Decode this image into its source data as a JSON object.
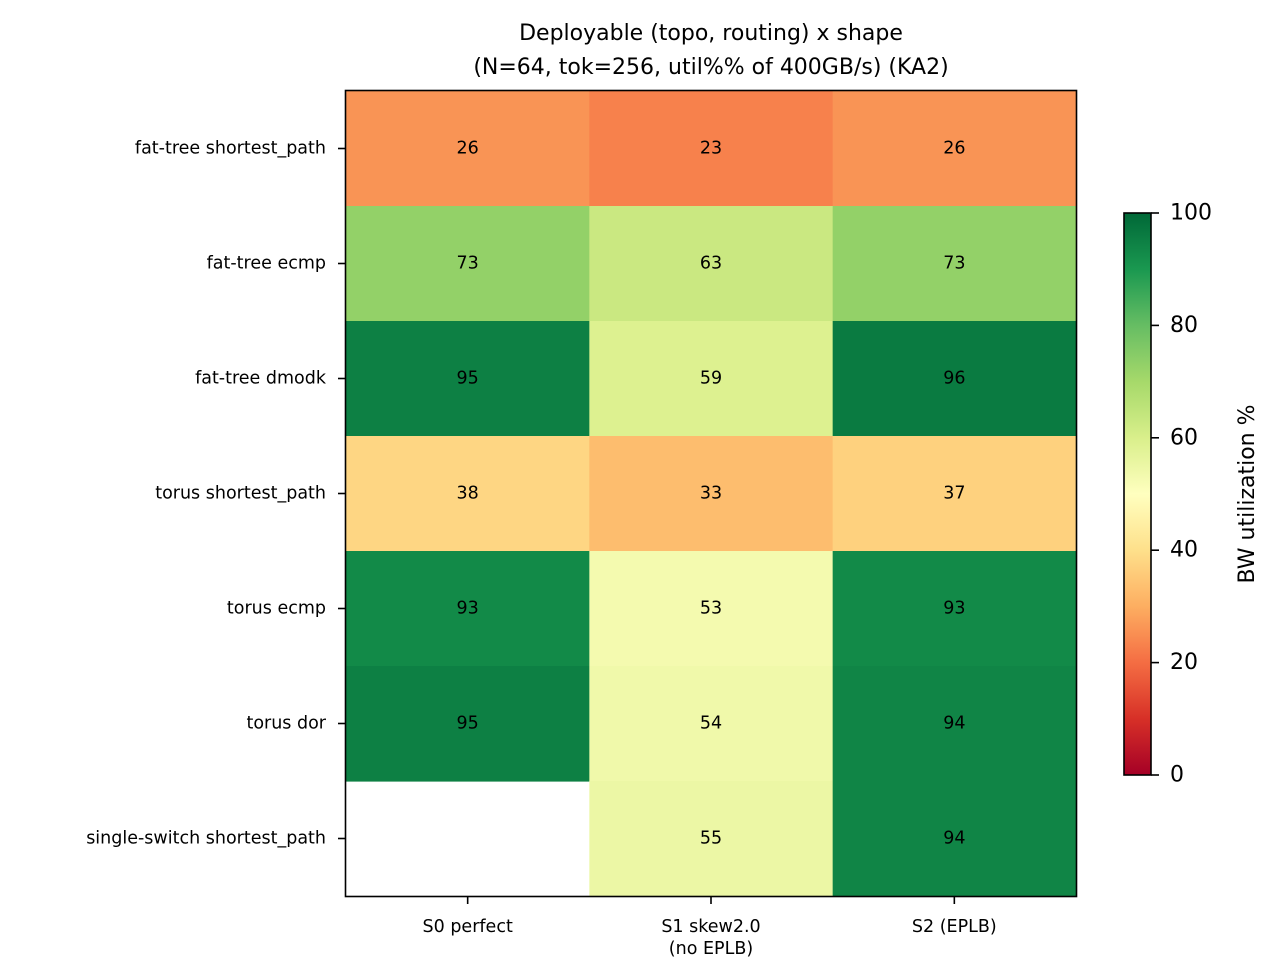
{
  "chart_data": {
    "type": "heatmap",
    "title_lines": [
      "Deployable (topo, routing) x shape",
      "(N=64, tok=256, util%% of 400GB/s) (KA2)"
    ],
    "rows": [
      "fat-tree shortest_path",
      "fat-tree ecmp",
      "fat-tree dmodk",
      "torus shortest_path",
      "torus ecmp",
      "torus dor",
      "single-switch shortest_path"
    ],
    "columns": [
      [
        "S0 perfect"
      ],
      [
        "S1 skew2.0",
        "(no EPLB)"
      ],
      [
        "S2 (EPLB)"
      ]
    ],
    "values": [
      [
        26,
        23,
        26
      ],
      [
        73,
        63,
        73
      ],
      [
        95,
        59,
        96
      ],
      [
        38,
        33,
        37
      ],
      [
        93,
        53,
        93
      ],
      [
        95,
        54,
        94
      ],
      [
        null,
        55,
        94
      ]
    ],
    "colormap": "RdYlGn",
    "vmin": 0,
    "vmax": 100,
    "colorbar": {
      "label": "BW utilization %",
      "ticks": [
        0,
        20,
        40,
        60,
        80,
        100
      ]
    }
  }
}
